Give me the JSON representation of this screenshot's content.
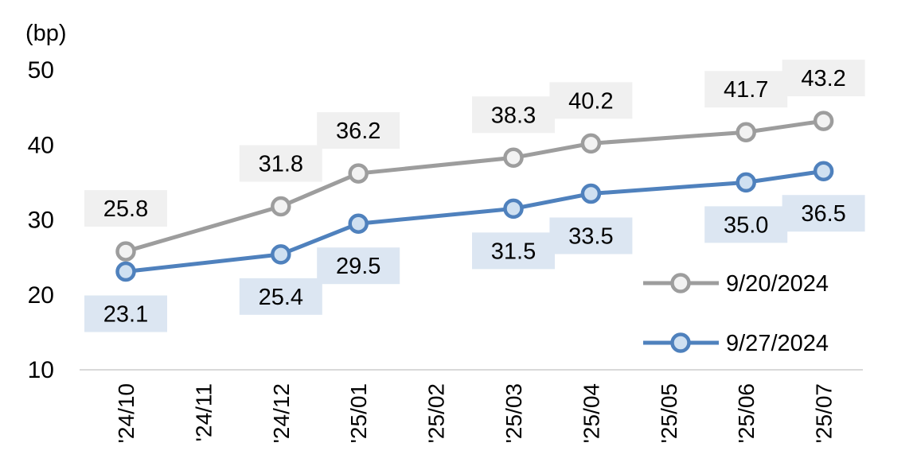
{
  "chart_data": {
    "type": "line",
    "unit_label": "(bp)",
    "categories": [
      "'24/10",
      "'24/11",
      "'24/12",
      "'25/01",
      "'25/02",
      "'25/03",
      "'25/04",
      "'25/05",
      "'25/06",
      "'25/07"
    ],
    "ylim": [
      10,
      50
    ],
    "yticks": [
      10,
      20,
      30,
      40,
      50
    ],
    "grid": false,
    "legend_position": "inside-right",
    "axis_color": "#d9d9d9",
    "text_color": "#000000",
    "series": [
      {
        "name": "9/20/2024",
        "color": "#9d9d9d",
        "marker_fill": "#f2f2f2",
        "label_bg": "#f0f0f0",
        "label_side": "above",
        "points": [
          {
            "category": "'24/10",
            "category_index": 0,
            "value": 25.8
          },
          {
            "category": "'24/12",
            "category_index": 2,
            "value": 31.8
          },
          {
            "category": "'25/01",
            "category_index": 3,
            "value": 36.2
          },
          {
            "category": "'25/03",
            "category_index": 5,
            "value": 38.3
          },
          {
            "category": "'25/04",
            "category_index": 6,
            "value": 40.2
          },
          {
            "category": "'25/06",
            "category_index": 8,
            "value": 41.7
          },
          {
            "category": "'25/07",
            "category_index": 9,
            "value": 43.2
          }
        ]
      },
      {
        "name": "9/27/2024",
        "color": "#4f81bd",
        "marker_fill": "#cfe0f1",
        "label_bg": "#dce6f2",
        "label_side": "below",
        "points": [
          {
            "category": "'24/10",
            "category_index": 0,
            "value": 23.1
          },
          {
            "category": "'24/12",
            "category_index": 2,
            "value": 25.4
          },
          {
            "category": "'25/01",
            "category_index": 3,
            "value": 29.5
          },
          {
            "category": "'25/03",
            "category_index": 5,
            "value": 31.5
          },
          {
            "category": "'25/04",
            "category_index": 6,
            "value": 33.5
          },
          {
            "category": "'25/06",
            "category_index": 8,
            "value": 35.0
          },
          {
            "category": "'25/07",
            "category_index": 9,
            "value": 36.5
          }
        ]
      }
    ]
  }
}
